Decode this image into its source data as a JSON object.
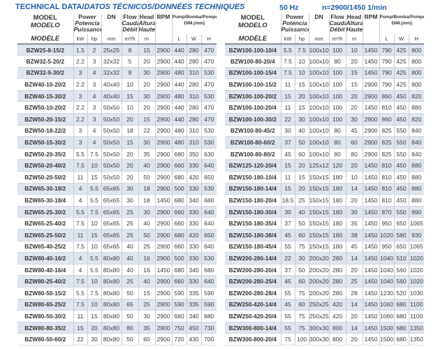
{
  "title": {
    "main": "TECHNICAL DATA/",
    "italic": "DATOS TÉCNICOS/DONNÉES TECHNIQUES"
  },
  "frequency": "50 Hz",
  "speed": "n=2900/1450 1/min",
  "headers": {
    "model": [
      "MODEL",
      "MODELO",
      "MODÈLE"
    ],
    "power": [
      "Power",
      "Potencia",
      "Puissance"
    ],
    "dn": "DN",
    "flow": [
      "Flow",
      "Caudal",
      "Débit"
    ],
    "head": [
      "Head",
      "Altura",
      "Hauteur"
    ],
    "rpm": "RPM",
    "dim": [
      "Pump/Bomba/Pompe",
      "DIM.(mm)"
    ],
    "units": [
      "kW",
      "hp",
      "mm",
      "m³/h",
      "m",
      "",
      "L",
      "W",
      "H"
    ]
  },
  "left_rows": [
    [
      "BZW25-8-15/2",
      "1.5",
      "2",
      "25x25",
      "8",
      "15",
      "2900",
      "440",
      "280",
      "470"
    ],
    [
      "BZW32-5-20/2",
      "2.2",
      "3",
      "32x32",
      "5",
      "20",
      "2900",
      "440",
      "280",
      "470"
    ],
    [
      "BZW32-9-30/2",
      "3",
      "4",
      "32x32",
      "9",
      "30",
      "2900",
      "480",
      "310",
      "530"
    ],
    [
      "BZW40-10-20/2",
      "2.2",
      "3",
      "40x40",
      "10",
      "20",
      "2900",
      "440",
      "280",
      "470"
    ],
    [
      "BZW40-15-30/2",
      "3",
      "4",
      "40x40",
      "15",
      "30",
      "2900",
      "480",
      "310",
      "530"
    ],
    [
      "BZW50-10-20/2",
      "2.2",
      "3",
      "50x50",
      "10",
      "20",
      "2900",
      "440",
      "280",
      "470"
    ],
    [
      "BZW50-20-15/2",
      "2.2",
      "3",
      "50x50",
      "20",
      "15",
      "2900",
      "440",
      "280",
      "470"
    ],
    [
      "BZW50-18-22/2",
      "3",
      "4",
      "50x50",
      "18",
      "22",
      "2900",
      "480",
      "310",
      "530"
    ],
    [
      "BZW50-15-30/2",
      "3",
      "4",
      "50x50",
      "15",
      "30",
      "2900",
      "480",
      "310",
      "530"
    ],
    [
      "BZW50-20-35/2",
      "5.5",
      "7.5",
      "50x50",
      "20",
      "35",
      "2900",
      "680",
      "350",
      "630"
    ],
    [
      "BZW50-20-40/2",
      "7.5",
      "10",
      "50x50",
      "20",
      "40",
      "2900",
      "660",
      "330",
      "640"
    ],
    [
      "BZW50-20-50/2",
      "11",
      "15",
      "50x50",
      "20",
      "50",
      "2900",
      "680",
      "420",
      "650"
    ],
    [
      "BZW65-30-18/2",
      "4",
      "5.5",
      "65x65",
      "30",
      "18",
      "2900",
      "500",
      "330",
      "530"
    ],
    [
      "BZW65-30-18/4",
      "4",
      "5.5",
      "65x65",
      "30",
      "18",
      "1450",
      "680",
      "340",
      "680"
    ],
    [
      "BZW65-25-30/2",
      "5.5",
      "7.5",
      "65x65",
      "25",
      "30",
      "2900",
      "660",
      "330",
      "640"
    ],
    [
      "BZW65-25-40/2",
      "7.5",
      "10",
      "65x65",
      "25",
      "40",
      "2900",
      "660",
      "330",
      "640"
    ],
    [
      "BZW65-25-50/2",
      "11",
      "15",
      "65x65",
      "25",
      "50",
      "2900",
      "680",
      "420",
      "650"
    ],
    [
      "BZW65-40-25/2",
      "7.5",
      "10",
      "65x65",
      "40",
      "25",
      "2900",
      "660",
      "330",
      "640"
    ],
    [
      "BZW80-40-16/2",
      "4",
      "5.5",
      "80x80",
      "40",
      "16",
      "2900",
      "500",
      "330",
      "530"
    ],
    [
      "BZW80-40-16/4",
      "4",
      "5.5",
      "80x80",
      "40",
      "16",
      "1450",
      "680",
      "340",
      "680"
    ],
    [
      "BZW80-25-40/2",
      "7.5",
      "10",
      "80x80",
      "25",
      "40",
      "2900",
      "660",
      "330",
      "640"
    ],
    [
      "BZW80-50-15/2",
      "5.5",
      "7.5",
      "80x80",
      "50",
      "15",
      "2900",
      "590",
      "335",
      "590"
    ],
    [
      "BZW80-65-25/2",
      "7.5",
      "10",
      "80x80",
      "65",
      "25",
      "2900",
      "590",
      "335",
      "590"
    ],
    [
      "BZW80-50-30/2",
      "11",
      "15",
      "80x80",
      "50",
      "30",
      "2900",
      "680",
      "340",
      "680"
    ],
    [
      "BZW80-80-35/2",
      "15",
      "20",
      "80x80",
      "80",
      "35",
      "2900",
      "750",
      "450",
      "730"
    ],
    [
      "BZW80-50-60/2",
      "22",
      "30",
      "80x80",
      "50",
      "60",
      "2900",
      "720",
      "430",
      "700"
    ]
  ],
  "right_rows": [
    [
      "BZW100-100-10/4",
      "5.5",
      "7.5",
      "100x100",
      "100",
      "10",
      "1450",
      "790",
      "425",
      "800"
    ],
    [
      "BZW100-80-20/4",
      "7.5",
      "10",
      "100x100",
      "80",
      "20",
      "1450",
      "790",
      "425",
      "800"
    ],
    [
      "BZW100-100-15/4",
      "7.5",
      "10",
      "100x100",
      "100",
      "15",
      "1450",
      "790",
      "425",
      "800"
    ],
    [
      "BZW100-100-15/2",
      "11",
      "15",
      "100x100",
      "100",
      "15",
      "2900",
      "790",
      "425",
      "800"
    ],
    [
      "BZW100-100-20/2",
      "15",
      "20",
      "100x100",
      "100",
      "20",
      "2900",
      "860",
      "450",
      "820"
    ],
    [
      "BZW100-100-20/4",
      "11",
      "15",
      "100x100",
      "100",
      "20",
      "1450",
      "810",
      "450",
      "880"
    ],
    [
      "BZW100-100-30/2",
      "22",
      "30",
      "100x100",
      "100",
      "30",
      "2900",
      "860",
      "450",
      "820"
    ],
    [
      "BZW100-80-45/2",
      "30",
      "40",
      "100x100",
      "80",
      "45",
      "2900",
      "825",
      "550",
      "840"
    ],
    [
      "BZW100-80-60/2",
      "37",
      "50",
      "100x100",
      "80",
      "60",
      "2900",
      "825",
      "550",
      "840"
    ],
    [
      "BZW100-80-80/2",
      "45",
      "60",
      "100x100",
      "80",
      "80",
      "2900",
      "825",
      "550",
      "840"
    ],
    [
      "BZW125-120-20/4",
      "15",
      "20",
      "125x125",
      "120",
      "20",
      "1450",
      "810",
      "450",
      "880"
    ],
    [
      "BZW150-180-10/4",
      "11",
      "15",
      "150x150",
      "180",
      "10",
      "1450",
      "810",
      "450",
      "880"
    ],
    [
      "BZW150-180-14/4",
      "15",
      "20",
      "150x150",
      "180",
      "14",
      "1450",
      "810",
      "450",
      "880"
    ],
    [
      "BZW150-180-20/4",
      "18.5",
      "25",
      "150x150",
      "180",
      "20",
      "1450",
      "810",
      "450",
      "880"
    ],
    [
      "BZW150-180-30/4",
      "30",
      "40",
      "150x150",
      "180",
      "30",
      "1450",
      "870",
      "550",
      "990"
    ],
    [
      "BZW150-180-35/4",
      "37",
      "50",
      "150x150",
      "180",
      "35",
      "1450",
      "950",
      "650",
      "1065"
    ],
    [
      "BZW150-180-38/4",
      "45",
      "60",
      "150x150",
      "180",
      "38",
      "1450",
      "1020",
      "580",
      "930"
    ],
    [
      "BZW150-180-45/4",
      "55",
      "75",
      "150x150",
      "180",
      "45",
      "1450",
      "950",
      "650",
      "1065"
    ],
    [
      "BZW200-280-14/4",
      "22",
      "30",
      "200x200",
      "280",
      "14",
      "1450",
      "1040",
      "510",
      "1020"
    ],
    [
      "BZW200-280-20/4",
      "37",
      "50",
      "200x200",
      "280",
      "20",
      "1450",
      "1040",
      "560",
      "1020"
    ],
    [
      "BZW200-280-25/4",
      "45",
      "60",
      "200x200",
      "280",
      "25",
      "1450",
      "1040",
      "560",
      "1020"
    ],
    [
      "BZW200-280-28/4",
      "55",
      "75",
      "200x200",
      "280",
      "28",
      "1450",
      "1230",
      "520",
      "1030"
    ],
    [
      "BZW250-420-14/4",
      "45",
      "60",
      "250x250",
      "420",
      "14",
      "1450",
      "1060",
      "680",
      "1100"
    ],
    [
      "BZW250-420-20/4",
      "55",
      "75",
      "250x250",
      "420",
      "20",
      "1450",
      "1060",
      "680",
      "1100"
    ],
    [
      "BZW300-800-14/4",
      "55",
      "75",
      "300x300",
      "800",
      "14",
      "1450",
      "1500",
      "680",
      "1350"
    ],
    [
      "BZW300-800-20/4",
      "75",
      "100",
      "300x300",
      "800",
      "20",
      "1450",
      "1500",
      "680",
      "1350"
    ]
  ]
}
